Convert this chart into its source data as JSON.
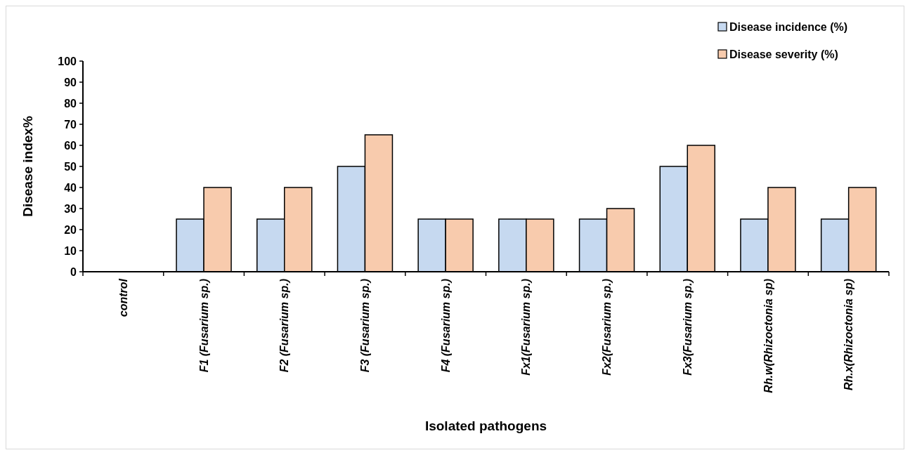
{
  "chart_data": {
    "type": "bar",
    "xlabel": "Isolated pathogens",
    "ylabel": "Disease index%",
    "categories": [
      "control",
      "F1 (Fusarium sp.)",
      "F2 (Fusarium sp.)",
      "F3 (Fusarium sp.)",
      "F4 (Fusarium sp.)",
      "Fx1(Fusarium sp.)",
      "Fx2(Fusarium sp.)",
      "Fx3(Fusarium sp.)",
      "Rh.w(Rhizoctonia sp)",
      "Rh.x(Rhizoctonia sp)"
    ],
    "series": [
      {
        "name": "Disease incidence (%)",
        "color": "#c6d9f0",
        "values": [
          0,
          25,
          25,
          50,
          25,
          25,
          25,
          50,
          25,
          25
        ]
      },
      {
        "name": "Disease severity (%)",
        "color": "#f8cbad",
        "values": [
          0,
          40,
          40,
          65,
          25,
          25,
          30,
          60,
          40,
          40
        ]
      }
    ],
    "ylim": [
      0,
      100
    ],
    "yticks": [
      0,
      10,
      20,
      30,
      40,
      50,
      60,
      70,
      80,
      90,
      100
    ],
    "grid": false,
    "legend": "top right"
  }
}
